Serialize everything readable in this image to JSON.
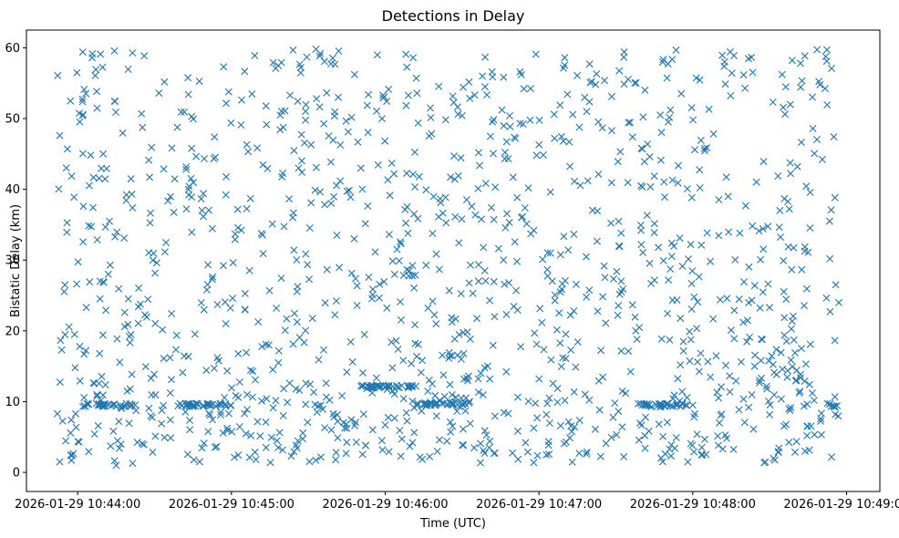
{
  "chart_data": {
    "type": "scatter",
    "title": "Detections in Delay",
    "xlabel": "Time (UTC)",
    "ylabel": "Bistatic Delay (km)",
    "marker": "x",
    "color": "#1f77b4",
    "grid": false,
    "x_range": [
      "2026-01-29 10:43:52",
      "2026-01-29 10:48:57"
    ],
    "x_axis_limits": [
      "2026-01-29 10:43:40",
      "2026-01-29 10:49:13"
    ],
    "ylim": [
      -2.7,
      62.5
    ],
    "x_ticks": [
      "2026-01-29 10:44:00",
      "2026-01-29 10:45:00",
      "2026-01-29 10:46:00",
      "2026-01-29 10:47:00",
      "2026-01-29 10:48:00",
      "2026-01-29 10:49:00"
    ],
    "y_ticks": [
      0,
      10,
      20,
      30,
      40,
      50,
      60
    ],
    "clusters_note": "",
    "clusters": [
      {
        "x_start": "2026-01-29 10:44:02",
        "x_end": "2026-01-29 10:44:22",
        "y": 9.5
      },
      {
        "x_start": "2026-01-29 10:44:38",
        "x_end": "2026-01-29 10:45:00",
        "y": 9.5
      },
      {
        "x_start": "2026-01-29 10:45:50",
        "x_end": "2026-01-29 10:46:12",
        "y": 12.1
      },
      {
        "x_start": "2026-01-29 10:46:12",
        "x_end": "2026-01-29 10:46:32",
        "y": 9.7
      },
      {
        "x_start": "2026-01-29 10:47:38",
        "x_end": "2026-01-29 10:48:00",
        "y": 9.5
      },
      {
        "x_start": "2026-01-29 10:48:52",
        "x_end": "2026-01-29 10:48:57",
        "y": 9.5
      }
    ],
    "point_count": 1500,
    "sample_points": [
      {
        "x": "2026-01-29 10:43:53",
        "y": 47.6
      },
      {
        "x": "2026-01-29 10:43:55",
        "y": 26.5
      },
      {
        "x": "2026-01-29 10:43:59",
        "y": 14.8
      },
      {
        "x": "2026-01-29 10:44:02",
        "y": 59.4
      },
      {
        "x": "2026-01-29 10:44:15",
        "y": 1.0
      },
      {
        "x": "2026-01-29 10:45:33",
        "y": 59.8
      },
      {
        "x": "2026-01-29 10:46:00",
        "y": 12.0
      },
      {
        "x": "2026-01-29 10:47:00",
        "y": 46.3
      },
      {
        "x": "2026-01-29 10:48:00",
        "y": 9.5
      },
      {
        "x": "2026-01-29 10:48:57",
        "y": 24.0
      }
    ]
  }
}
